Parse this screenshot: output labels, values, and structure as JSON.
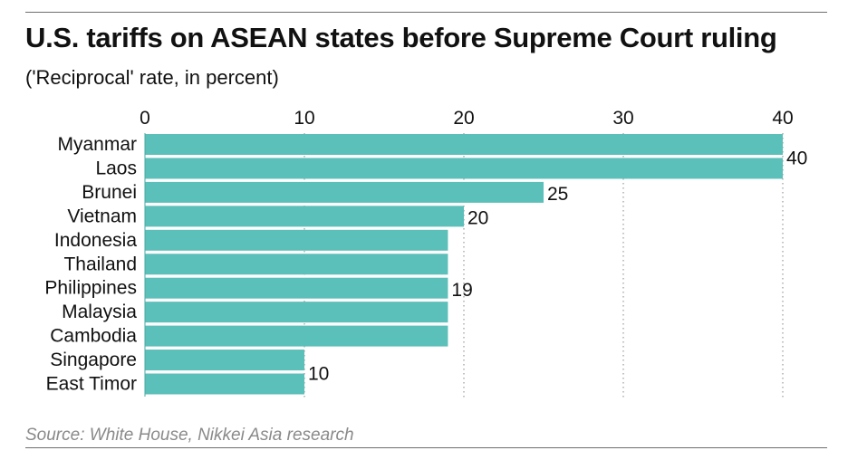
{
  "chart_data": {
    "type": "bar",
    "orientation": "horizontal",
    "title": "U.S. tariffs on ASEAN states before Supreme Court ruling",
    "subtitle": "('Reciprocal' rate, in percent)",
    "source": "Source: White House, Nikkei Asia research",
    "categories": [
      "Myanmar",
      "Laos",
      "Brunei",
      "Vietnam",
      "Indonesia",
      "Thailand",
      "Philippines",
      "Malaysia",
      "Cambodia",
      "Singapore",
      "East Timor"
    ],
    "values": [
      40,
      40,
      25,
      20,
      19,
      19,
      19,
      19,
      19,
      10,
      10
    ],
    "data_labels": [
      {
        "text": "40",
        "value": 40,
        "rows": [
          0,
          1
        ]
      },
      {
        "text": "25",
        "value": 25,
        "rows": [
          2,
          2
        ]
      },
      {
        "text": "20",
        "value": 20,
        "rows": [
          3,
          3
        ]
      },
      {
        "text": "19",
        "value": 19,
        "rows": [
          4,
          8
        ]
      },
      {
        "text": "10",
        "value": 10,
        "rows": [
          9,
          10
        ]
      }
    ],
    "xaxis": {
      "position": "top",
      "ticks": [
        0,
        10,
        20,
        30,
        40
      ],
      "tick_labels": [
        "0",
        "10",
        "20",
        "30",
        "40"
      ],
      "range": [
        0,
        40
      ]
    },
    "grid": "vertical dotted",
    "bar_color": "#5bbfba"
  }
}
